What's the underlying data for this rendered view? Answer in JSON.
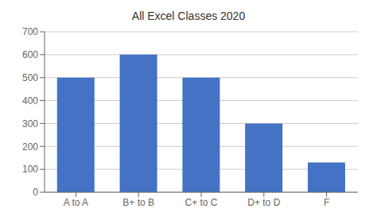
{
  "chart_data": {
    "type": "bar",
    "title": "All Excel Classes 2020",
    "categories": [
      "A to A",
      "B+ to B",
      "C+ to C",
      "D+ to D",
      "F"
    ],
    "values": [
      500,
      600,
      500,
      300,
      130
    ],
    "color": "#4472C4",
    "ylim": [
      0,
      700
    ],
    "yticks": [
      0,
      100,
      200,
      300,
      400,
      500,
      600,
      700
    ],
    "grid": true
  }
}
